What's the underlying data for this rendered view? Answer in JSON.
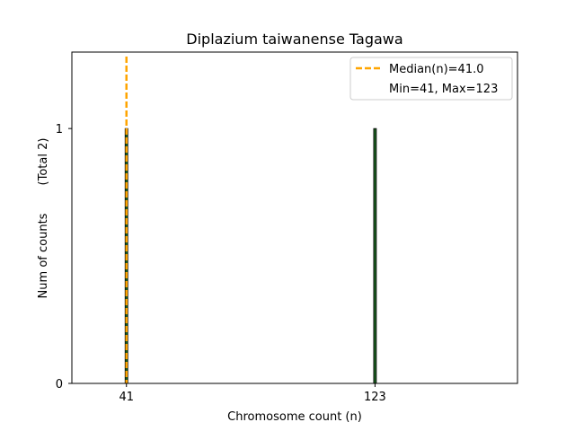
{
  "chart_data": {
    "type": "bar",
    "title": "Diplazium taiwanense Tagawa",
    "xlabel": "Chromosome count (n)",
    "ylabel": "Num of counts",
    "ylabel_total": "(Total 2)",
    "categories": [
      "41",
      "123"
    ],
    "x": [
      41,
      123
    ],
    "values": [
      1,
      1
    ],
    "xlim": [
      23,
      170
    ],
    "ylim": [
      0,
      1.3
    ],
    "yticks": [
      "0",
      "1"
    ],
    "median_line": {
      "value": 41.0,
      "label": "Median(n)=41.0",
      "color": "#FFA500",
      "style": "dashed"
    },
    "legend": {
      "placement": "top-right",
      "entries": [
        "Median(n)=41.0",
        "Min=41, Max=123"
      ]
    },
    "colors": {
      "bar_fill": "#1b5e20",
      "bar_edge": "#000000"
    },
    "grid": false
  }
}
